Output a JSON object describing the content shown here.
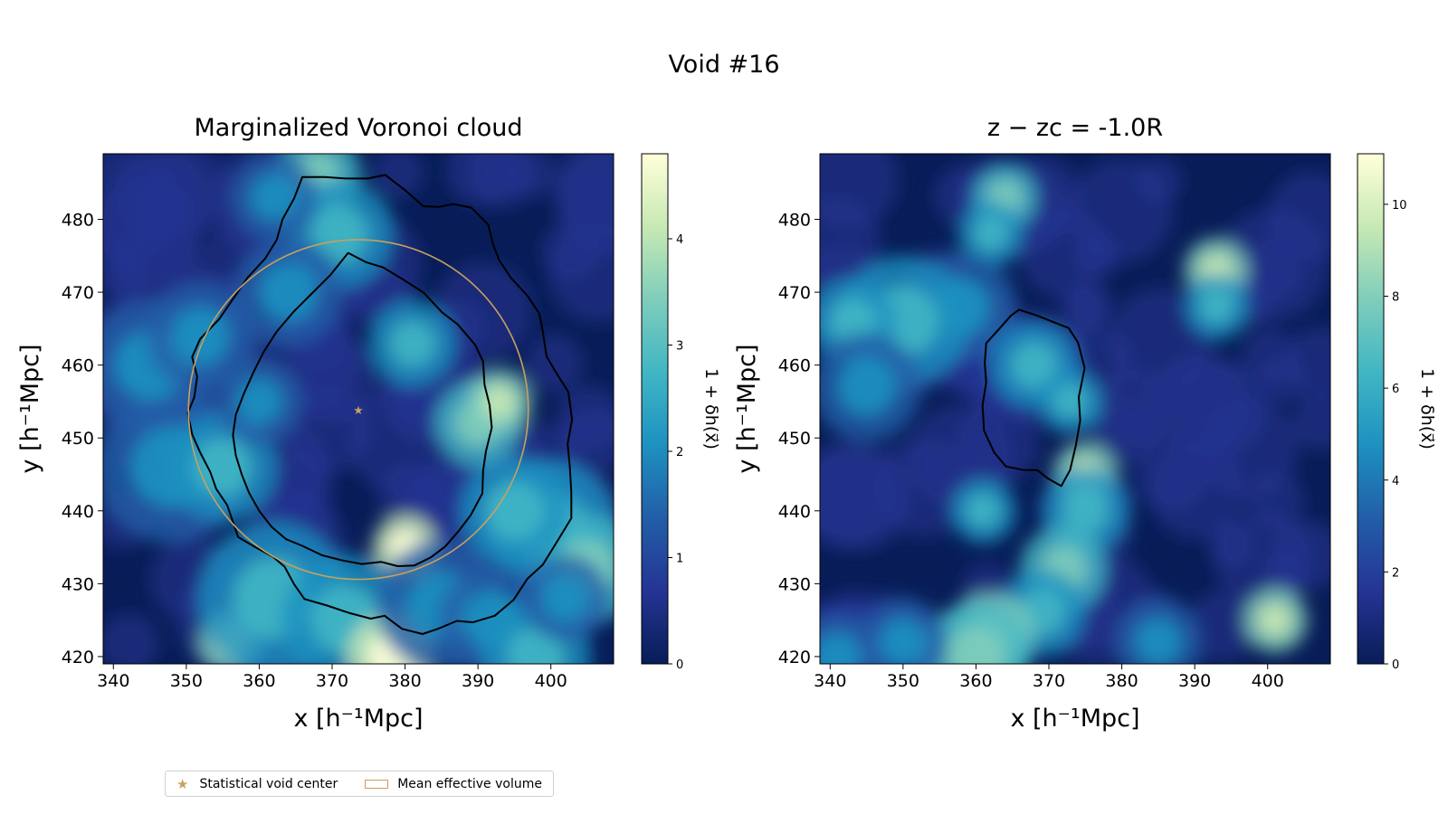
{
  "figure": {
    "title": "Void #16"
  },
  "colors": {
    "star": "#c8a060",
    "circle": "#c8a060",
    "contour": "#000000",
    "colormap_name": "YlGnBu_r",
    "colormap": [
      "#081d58",
      "#253494",
      "#225ea8",
      "#1d91c0",
      "#41b6c4",
      "#7fcdbb",
      "#c7e9b4",
      "#ffffd9"
    ]
  },
  "legend": {
    "placement": "lower-left",
    "items": [
      {
        "label": "Statistical void center",
        "icon": "star-icon"
      },
      {
        "label": "Mean effective volume",
        "icon": "rectangle-outline-icon"
      }
    ]
  },
  "chart_data": [
    {
      "type": "heatmap",
      "title": "Marginalized Voronoi cloud",
      "xlabel": "x [h⁻¹Mpc]",
      "ylabel": "y [h⁻¹Mpc]",
      "xlim": [
        338.6,
        408.6
      ],
      "ylim": [
        419.0,
        489.0
      ],
      "xticks": [
        340,
        350,
        360,
        370,
        380,
        390,
        400
      ],
      "yticks": [
        420,
        430,
        440,
        450,
        460,
        470,
        480
      ],
      "colorbar": {
        "label": "1 + δh(x⃗)",
        "range": [
          0,
          4.8
        ],
        "ticks": [
          0,
          1,
          2,
          3,
          4
        ]
      },
      "void_center": [
        373.6,
        453.9
      ],
      "mean_effective_radius": 23.3,
      "contours": [
        [
          [
            365.9,
            485.8
          ],
          [
            369,
            485.8
          ],
          [
            372,
            485.6
          ],
          [
            374.9,
            485.6
          ],
          [
            377.3,
            486.1
          ],
          [
            380,
            484
          ],
          [
            382.5,
            481.8
          ],
          [
            384.6,
            481.7
          ],
          [
            386.6,
            482.1
          ],
          [
            389.1,
            481.6
          ],
          [
            391.4,
            479.3
          ],
          [
            392.1,
            476.5
          ],
          [
            392.9,
            474.4
          ],
          [
            394.5,
            472
          ],
          [
            396.8,
            469.5
          ],
          [
            398.4,
            467.1
          ],
          [
            398.9,
            464.6
          ],
          [
            399.4,
            461.2
          ],
          [
            400.7,
            459
          ],
          [
            402.4,
            456.3
          ],
          [
            402.9,
            452.5
          ],
          [
            402.3,
            449.2
          ],
          [
            402.6,
            446
          ],
          [
            402.8,
            442.5
          ],
          [
            402.8,
            439
          ],
          [
            400.8,
            435.7
          ],
          [
            398.9,
            432.6
          ],
          [
            396.8,
            430.7
          ],
          [
            394.9,
            427.8
          ],
          [
            392.3,
            425.6
          ],
          [
            389.3,
            424.7
          ],
          [
            387.1,
            424.9
          ],
          [
            384.5,
            423.8
          ],
          [
            382.4,
            423.1
          ],
          [
            379.6,
            423.8
          ],
          [
            377.2,
            425.6
          ],
          [
            375.3,
            425.2
          ],
          [
            372.3,
            426
          ],
          [
            369.3,
            427
          ],
          [
            366.2,
            427.9
          ],
          [
            364.8,
            429.9
          ],
          [
            363.5,
            432.3
          ],
          [
            361.9,
            433.7
          ],
          [
            359.5,
            435
          ],
          [
            357.1,
            436.4
          ],
          [
            356.4,
            438.5
          ],
          [
            355.6,
            440.8
          ],
          [
            354.1,
            443
          ],
          [
            353.3,
            445.3
          ],
          [
            351.9,
            448
          ],
          [
            350.8,
            450.5
          ],
          [
            350.2,
            453.4
          ],
          [
            351.1,
            455.6
          ],
          [
            351.5,
            458.4
          ],
          [
            350.8,
            461.1
          ],
          [
            351.9,
            463.6
          ],
          [
            354.5,
            466.3
          ],
          [
            356.5,
            469.2
          ],
          [
            358.4,
            472
          ],
          [
            360.8,
            474.6
          ],
          [
            362.4,
            477.2
          ],
          [
            363.2,
            480
          ],
          [
            364.8,
            482.9
          ],
          [
            365.9,
            485.8
          ]
        ],
        [
          [
            372.2,
            475.4
          ],
          [
            374.7,
            474.1
          ],
          [
            377,
            473.4
          ],
          [
            379.8,
            471.7
          ],
          [
            382.6,
            469.9
          ],
          [
            385.1,
            467.2
          ],
          [
            387.2,
            465.6
          ],
          [
            389.6,
            462.8
          ],
          [
            390.7,
            460.5
          ],
          [
            390.9,
            457.3
          ],
          [
            391.6,
            454.5
          ],
          [
            391.9,
            451.4
          ],
          [
            391.1,
            448.2
          ],
          [
            390.7,
            445.5
          ],
          [
            390.6,
            442.4
          ],
          [
            389,
            439.4
          ],
          [
            387.4,
            437.3
          ],
          [
            385.5,
            435.1
          ],
          [
            383.5,
            433.6
          ],
          [
            381.3,
            432.5
          ],
          [
            379,
            432.4
          ],
          [
            376.7,
            433
          ],
          [
            374.1,
            432.7
          ],
          [
            371.4,
            433.2
          ],
          [
            368.6,
            433.9
          ],
          [
            365.9,
            435.2
          ],
          [
            363.7,
            436.1
          ],
          [
            361.7,
            437.8
          ],
          [
            360,
            440
          ],
          [
            358.6,
            442.5
          ],
          [
            357.6,
            445
          ],
          [
            356.8,
            447.6
          ],
          [
            356.4,
            450.4
          ],
          [
            356.8,
            453.2
          ],
          [
            357.9,
            456.1
          ],
          [
            359.2,
            459
          ],
          [
            360.6,
            461.8
          ],
          [
            362.4,
            464.6
          ],
          [
            364.7,
            467.3
          ],
          [
            367.1,
            469.7
          ],
          [
            369.7,
            472.3
          ],
          [
            372.2,
            475.4
          ]
        ]
      ]
    },
    {
      "type": "heatmap",
      "title": "z − zc = -1.0R",
      "xlabel": "x [h⁻¹Mpc]",
      "ylabel": "y [h⁻¹Mpc]",
      "xlim": [
        338.6,
        408.6
      ],
      "ylim": [
        419.0,
        489.0
      ],
      "xticks": [
        340,
        350,
        360,
        370,
        380,
        390,
        400
      ],
      "yticks": [
        420,
        430,
        440,
        450,
        460,
        470,
        480
      ],
      "colorbar": {
        "label": "1 + δh(x⃗)",
        "range": [
          0,
          11.1
        ],
        "ticks": [
          0,
          2,
          4,
          6,
          8,
          10
        ]
      },
      "contours": [
        [
          [
            365.9,
            467.6
          ],
          [
            368.4,
            466.8
          ],
          [
            370.6,
            465.9
          ],
          [
            372.7,
            465.1
          ],
          [
            374,
            463.1
          ],
          [
            374.9,
            459.6
          ],
          [
            374.1,
            455.6
          ],
          [
            374.3,
            452.4
          ],
          [
            373.7,
            449
          ],
          [
            372.9,
            445.6
          ],
          [
            371.7,
            443.4
          ],
          [
            369.9,
            444.4
          ],
          [
            368.4,
            445.6
          ],
          [
            366.5,
            445.6
          ],
          [
            364.1,
            446.1
          ],
          [
            362.5,
            448
          ],
          [
            361.1,
            451
          ],
          [
            360.9,
            454.5
          ],
          [
            361.4,
            457.6
          ],
          [
            361.2,
            460.3
          ],
          [
            361.4,
            463
          ],
          [
            363.2,
            465
          ],
          [
            364.8,
            466.8
          ],
          [
            365.9,
            467.6
          ]
        ]
      ]
    }
  ]
}
